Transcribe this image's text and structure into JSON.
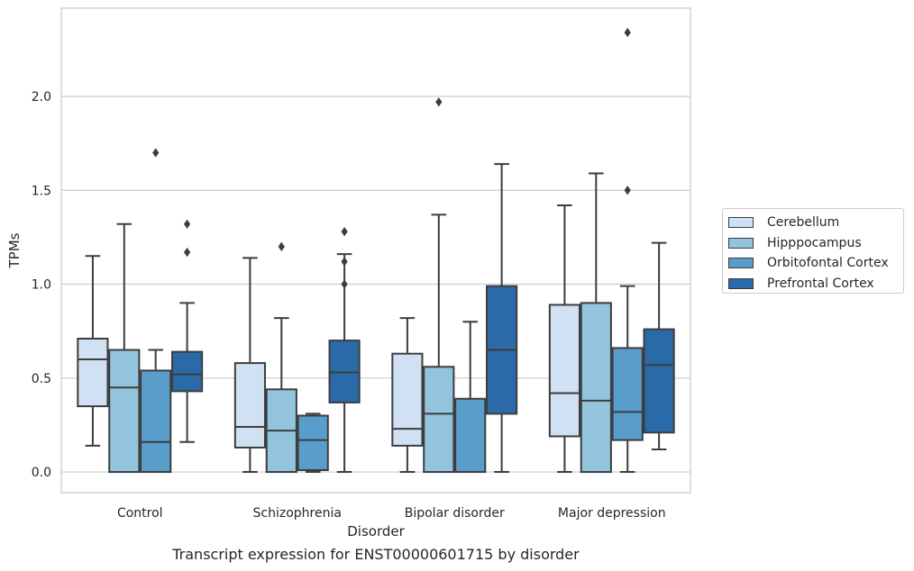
{
  "chart_data": {
    "type": "box",
    "title": "Transcript expression for ENST00000601715 by disorder",
    "xlabel": "Disorder",
    "ylabel": "TPMs",
    "ylim": [
      -0.11,
      2.47
    ],
    "yticks": [
      0.0,
      0.5,
      1.0,
      1.5,
      2.0
    ],
    "ytick_labels": [
      "0.0",
      "0.5",
      "1.0",
      "1.5",
      "2.0"
    ],
    "grid": "horizontal",
    "legend_position": "right",
    "categories": [
      "Control",
      "Schizophrenia",
      "Bipolar disorder",
      "Major depression"
    ],
    "series": [
      {
        "name": "Cerebellum",
        "color": "#cfe1f2",
        "boxes": [
          {
            "whislo": 0.14,
            "q1": 0.35,
            "med": 0.6,
            "q3": 0.71,
            "whishi": 1.15,
            "fliers": []
          },
          {
            "whislo": 0.0,
            "q1": 0.13,
            "med": 0.24,
            "q3": 0.58,
            "whishi": 1.14,
            "fliers": []
          },
          {
            "whislo": 0.0,
            "q1": 0.14,
            "med": 0.23,
            "q3": 0.63,
            "whishi": 0.82,
            "fliers": []
          },
          {
            "whislo": 0.0,
            "q1": 0.19,
            "med": 0.42,
            "q3": 0.89,
            "whishi": 1.42,
            "fliers": []
          }
        ]
      },
      {
        "name": "Hipppocampus",
        "color": "#93c4de",
        "boxes": [
          {
            "whislo": 0.0,
            "q1": 0.0,
            "med": 0.45,
            "q3": 0.65,
            "whishi": 1.32,
            "fliers": []
          },
          {
            "whislo": 0.0,
            "q1": 0.0,
            "med": 0.22,
            "q3": 0.44,
            "whishi": 0.82,
            "fliers": [
              1.2
            ]
          },
          {
            "whislo": 0.0,
            "q1": 0.0,
            "med": 0.31,
            "q3": 0.56,
            "whishi": 1.37,
            "fliers": [
              1.97
            ]
          },
          {
            "whislo": 0.0,
            "q1": 0.0,
            "med": 0.38,
            "q3": 0.9,
            "whishi": 1.59,
            "fliers": []
          }
        ]
      },
      {
        "name": "Orbitofontal Cortex",
        "color": "#5a9dcb",
        "boxes": [
          {
            "whislo": 0.0,
            "q1": 0.0,
            "med": 0.16,
            "q3": 0.54,
            "whishi": 0.65,
            "fliers": [
              1.7
            ]
          },
          {
            "whislo": 0.0,
            "q1": 0.01,
            "med": 0.17,
            "q3": 0.3,
            "whishi": 0.31,
            "fliers": []
          },
          {
            "whislo": 0.0,
            "q1": 0.0,
            "med": 0.0,
            "q3": 0.39,
            "whishi": 0.8,
            "fliers": []
          },
          {
            "whislo": 0.0,
            "q1": 0.17,
            "med": 0.32,
            "q3": 0.66,
            "whishi": 0.99,
            "fliers": [
              1.5,
              2.34
            ]
          }
        ]
      },
      {
        "name": "Prefrontal Cortex",
        "color": "#2a6aa9",
        "boxes": [
          {
            "whislo": 0.16,
            "q1": 0.43,
            "med": 0.52,
            "q3": 0.64,
            "whishi": 0.9,
            "fliers": [
              1.17,
              1.32
            ]
          },
          {
            "whislo": 0.0,
            "q1": 0.37,
            "med": 0.53,
            "q3": 0.7,
            "whishi": 1.16,
            "fliers": [
              1.0,
              1.12,
              1.28
            ]
          },
          {
            "whislo": 0.0,
            "q1": 0.31,
            "med": 0.65,
            "q3": 0.99,
            "whishi": 1.64,
            "fliers": []
          },
          {
            "whislo": 0.12,
            "q1": 0.21,
            "med": 0.57,
            "q3": 0.76,
            "whishi": 1.22,
            "fliers": []
          }
        ]
      }
    ]
  }
}
